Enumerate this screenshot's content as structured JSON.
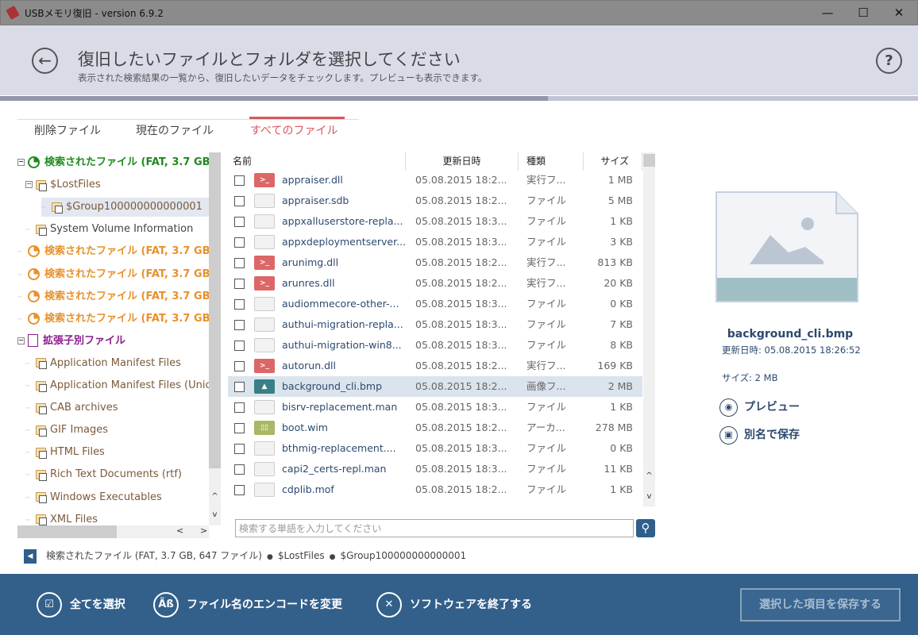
{
  "window": {
    "title": "USBメモリ復旧 - version 6.9.2",
    "minimize": "—",
    "maximize": "☐",
    "close": "✕"
  },
  "header": {
    "title": "復旧したいファイルとフォルダを選択してください",
    "subtitle": "表示された検索結果の一覧から、復旧したいデータをチェックします。プレビューも表示できます。",
    "back": "←",
    "help": "?"
  },
  "progress": {
    "steps_total": 5,
    "steps_done": 3
  },
  "tabs": [
    {
      "label": "削除ファイル"
    },
    {
      "label": "現在のファイル"
    },
    {
      "label": "すべてのファイル",
      "active": true
    }
  ],
  "tree": [
    {
      "label": "検索されたファイル (FAT, 3.7 GB, 647 ファイル)",
      "level": 0,
      "kind": "disk-green"
    },
    {
      "label": "$LostFiles",
      "level": 1,
      "kind": "folder"
    },
    {
      "label": "$Group100000000000001",
      "level": 2,
      "kind": "folder",
      "selected": true
    },
    {
      "label": "System Volume Information",
      "level": 1,
      "kind": "folder"
    },
    {
      "label": "検索されたファイル (FAT, 3.7 GB",
      "level": 0,
      "kind": "disk-orange"
    },
    {
      "label": "検索されたファイル (FAT, 3.7 GB",
      "level": 0,
      "kind": "disk-orange"
    },
    {
      "label": "検索されたファイル (FAT, 3.7 GB",
      "level": 0,
      "kind": "disk-orange"
    },
    {
      "label": "検索されたファイル (FAT, 3.7 GB",
      "level": 0,
      "kind": "disk-orange"
    },
    {
      "label": "拡張子別ファイル",
      "level": 0,
      "kind": "ext"
    },
    {
      "label": "Application Manifest Files",
      "level": 1,
      "kind": "folder"
    },
    {
      "label": "Application Manifest Files (Unicode)",
      "level": 1,
      "kind": "folder"
    },
    {
      "label": "CAB archives",
      "level": 1,
      "kind": "folder"
    },
    {
      "label": "GIF Images",
      "level": 1,
      "kind": "folder"
    },
    {
      "label": "HTML Files",
      "level": 1,
      "kind": "folder"
    },
    {
      "label": "Rich Text Documents (rtf)",
      "level": 1,
      "kind": "folder"
    },
    {
      "label": "Windows Executables",
      "level": 1,
      "kind": "folder"
    },
    {
      "label": "XML Files",
      "level": 1,
      "kind": "folder"
    }
  ],
  "list": {
    "columns": {
      "name": "名前",
      "date": "更新日時",
      "type": "種類",
      "size": "サイズ"
    },
    "rows": [
      {
        "name": "appraiser.dll",
        "date": "05.08.2015 18:2...",
        "type": "実行フ...",
        "size": "1 MB",
        "icon": "dll"
      },
      {
        "name": "appraiser.sdb",
        "date": "05.08.2015 18:2...",
        "type": "ファイル",
        "size": "5 MB",
        "icon": "doc"
      },
      {
        "name": "appxalluserstore-repla...",
        "date": "05.08.2015 18:3...",
        "type": "ファイル",
        "size": "1 KB",
        "icon": "doc"
      },
      {
        "name": "appxdeploymentserver...",
        "date": "05.08.2015 18:3...",
        "type": "ファイル",
        "size": "3 KB",
        "icon": "doc"
      },
      {
        "name": "arunimg.dll",
        "date": "05.08.2015 18:2...",
        "type": "実行フ...",
        "size": "813 KB",
        "icon": "dll"
      },
      {
        "name": "arunres.dll",
        "date": "05.08.2015 18:2...",
        "type": "実行フ...",
        "size": "20 KB",
        "icon": "dll"
      },
      {
        "name": "audiommecore-other-...",
        "date": "05.08.2015 18:3...",
        "type": "ファイル",
        "size": "0 KB",
        "icon": "doc"
      },
      {
        "name": "authui-migration-repla...",
        "date": "05.08.2015 18:3...",
        "type": "ファイル",
        "size": "7 KB",
        "icon": "doc"
      },
      {
        "name": "authui-migration-win8...",
        "date": "05.08.2015 18:3...",
        "type": "ファイル",
        "size": "8 KB",
        "icon": "doc"
      },
      {
        "name": "autorun.dll",
        "date": "05.08.2015 18:2...",
        "type": "実行フ...",
        "size": "169 KB",
        "icon": "dll"
      },
      {
        "name": "background_cli.bmp",
        "date": "05.08.2015 18:2...",
        "type": "画像フ...",
        "size": "2 MB",
        "icon": "img",
        "selected": true
      },
      {
        "name": "bisrv-replacement.man",
        "date": "05.08.2015 18:3...",
        "type": "ファイル",
        "size": "1 KB",
        "icon": "doc"
      },
      {
        "name": "boot.wim",
        "date": "05.08.2015 18:2...",
        "type": "アーカ...",
        "size": "278 MB",
        "icon": "arc"
      },
      {
        "name": "bthmig-replacement....",
        "date": "05.08.2015 18:3...",
        "type": "ファイル",
        "size": "0 KB",
        "icon": "doc"
      },
      {
        "name": "capi2_certs-repl.man",
        "date": "05.08.2015 18:3...",
        "type": "ファイル",
        "size": "11 KB",
        "icon": "doc"
      },
      {
        "name": "cdplib.mof",
        "date": "05.08.2015 18:2...",
        "type": "ファイル",
        "size": "1 KB",
        "icon": "doc"
      }
    ]
  },
  "search": {
    "placeholder": "検索する単語を入力してください",
    "value": ""
  },
  "breadcrumb": [
    "検索されたファイル (FAT, 3.7 GB, 647 ファイル)",
    "$LostFiles",
    "$Group100000000000001"
  ],
  "preview": {
    "filename": "background_cli.bmp",
    "date": "更新日時: 05.08.2015 18:26:52",
    "size": "サイズ: 2 MB",
    "preview_label": "プレビュー",
    "save_as_label": "別名で保存"
  },
  "footer": {
    "select_all": "全てを選択",
    "encoding": "ファイル名のエンコードを変更",
    "exit": "ソフトウェアを終了する",
    "save": "選択した項目を保存する"
  },
  "colors": {
    "accent": "#33608a",
    "active_tab": "#d9575a",
    "tree_green": "#1f8a1f",
    "tree_orange": "#e8912a",
    "tree_purple": "#8a1d8a"
  }
}
